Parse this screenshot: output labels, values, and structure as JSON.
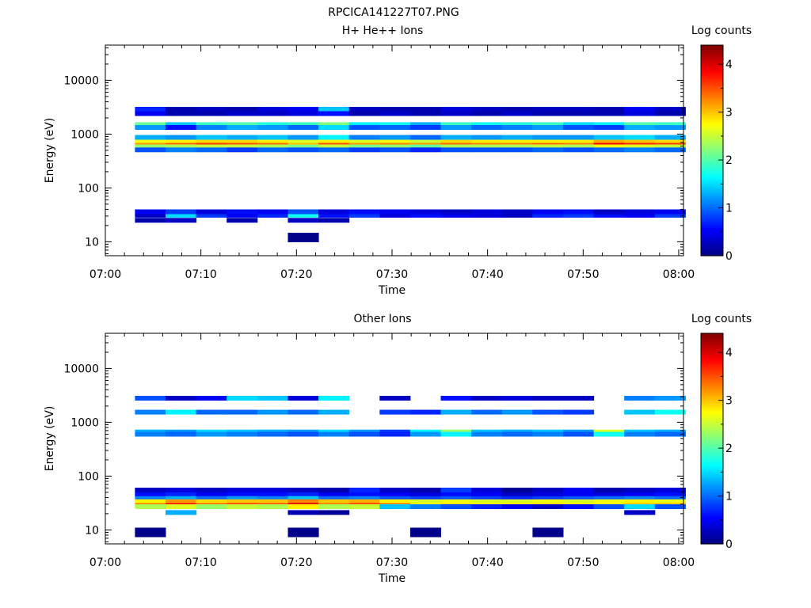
{
  "figure_title": "RPCICA141227T07.PNG",
  "chart_data": [
    {
      "type": "heatmap",
      "title": "H+ He++ Ions",
      "xlabel": "Time",
      "ylabel": "Energy (eV)",
      "colorbar_label": "Log counts",
      "x_ticks": [
        "07:00",
        "07:10",
        "07:20",
        "07:30",
        "07:40",
        "07:50",
        "08:00"
      ],
      "xlim_minutes": [
        0,
        60.5
      ],
      "y_scale": "log",
      "ylim": [
        5.5,
        45000
      ],
      "y_ticks": [
        10,
        100,
        1000,
        10000
      ],
      "y_tick_labels": [
        "10",
        "100",
        "1000",
        "10000"
      ],
      "colorbar_ticks": [
        "0",
        "1",
        "2",
        "3",
        "4"
      ],
      "colorbar_range": [
        0,
        4.4
      ],
      "time_bins_start_min": [
        3.1,
        6.3,
        9.5,
        12.7,
        15.9,
        19.1,
        22.3,
        25.5,
        28.7,
        31.9,
        35.1,
        38.3,
        41.5,
        44.7,
        47.9,
        51.1,
        54.3,
        57.5
      ],
      "bin_width_min": 3.2,
      "bands": [
        {
          "energy": 660,
          "levels": [
            3.2,
            3.4,
            3.6,
            3.5,
            3.4,
            3.0,
            3.5,
            3.2,
            3.3,
            3.2,
            3.4,
            3.3,
            3.3,
            3.4,
            3.3,
            3.9,
            3.7,
            3.6
          ]
        },
        {
          "energy": 760,
          "levels": [
            2.7,
            2.8,
            2.9,
            2.9,
            2.8,
            2.6,
            2.8,
            2.6,
            2.7,
            2.5,
            2.9,
            2.8,
            2.8,
            2.8,
            2.8,
            3.1,
            3.0,
            2.9
          ]
        },
        {
          "energy": 580,
          "levels": [
            2.3,
            2.4,
            2.5,
            2.5,
            2.4,
            2.2,
            2.5,
            2.2,
            2.3,
            2.1,
            2.4,
            2.4,
            2.4,
            2.5,
            2.4,
            2.7,
            2.6,
            2.5
          ]
        },
        {
          "energy": 870,
          "levels": [
            1.3,
            1.2,
            1.4,
            1.3,
            1.4,
            1.2,
            1.6,
            1.1,
            1.2,
            1.0,
            1.3,
            1.2,
            1.3,
            1.2,
            1.2,
            1.4,
            1.5,
            1.3
          ]
        },
        {
          "energy": 510,
          "levels": [
            0.9,
            1.1,
            1.0,
            0.8,
            1.0,
            0.9,
            1.0,
            0.8,
            0.9,
            0.7,
            0.9,
            0.9,
            0.9,
            1.0,
            0.9,
            1.0,
            1.1,
            1.0
          ]
        },
        {
          "energy": 1500,
          "levels": [
            2.1,
            1.4,
            1.9,
            2.0,
            1.8,
            1.9,
            2.2,
            1.6,
            1.7,
            1.3,
            1.9,
            1.7,
            1.8,
            1.9,
            1.5,
            1.6,
            2.0,
            1.9
          ]
        },
        {
          "energy": 1330,
          "levels": [
            1.2,
            0.6,
            1.1,
            1.3,
            1.2,
            1.0,
            1.5,
            0.9,
            1.0,
            0.8,
            1.2,
            1.0,
            1.1,
            1.2,
            0.9,
            0.8,
            1.3,
            1.2
          ]
        },
        {
          "energy": 31,
          "levels": [
            0.3,
            1.5,
            0.8,
            0.5,
            0.7,
            1.7,
            0.6,
            0.8,
            0.4,
            0.6,
            0.5,
            0.4,
            0.3,
            0.7,
            0.8,
            0.6,
            0.5,
            0.8
          ]
        },
        {
          "energy": 36,
          "levels": [
            0.5,
            0.8,
            0.4,
            0.6,
            0.5,
            0.9,
            0.4,
            0.6,
            0.5,
            0.4,
            0.3,
            0.4,
            0.3,
            0.5,
            0.6,
            0.3,
            0.4,
            0.5
          ]
        },
        {
          "energy": 25,
          "levels": [
            0.2,
            0.3,
            0.0,
            0.2,
            0.0,
            0.3,
            0.2,
            0.0,
            0.0,
            0.0,
            0.0,
            0.0,
            0.0,
            0.0,
            0.0,
            0.0,
            0.0,
            0.0
          ]
        },
        {
          "energy": 2900,
          "levels": [
            0.7,
            0.2,
            0.3,
            0.2,
            0.4,
            0.5,
            1.4,
            0.3,
            0.2,
            0.2,
            0.4,
            0.3,
            0.2,
            0.3,
            0.3,
            0.2,
            0.5,
            0.3
          ]
        },
        {
          "energy": 2400,
          "levels": [
            0.5,
            0.2,
            0.2,
            0.3,
            0.3,
            0.4,
            0.6,
            0.2,
            0.3,
            0.2,
            0.3,
            0.2,
            0.3,
            0.2,
            0.2,
            0.2,
            0.4,
            0.2
          ]
        },
        {
          "energy": 12,
          "levels": [
            0,
            0,
            0,
            0,
            0,
            0.05,
            0,
            0,
            0,
            0,
            0,
            0,
            0,
            0,
            0,
            0,
            0,
            0
          ]
        }
      ]
    },
    {
      "type": "heatmap",
      "title": "Other Ions",
      "xlabel": "Time",
      "ylabel": "Energy (eV)",
      "colorbar_label": "Log counts",
      "x_ticks": [
        "07:00",
        "07:10",
        "07:20",
        "07:30",
        "07:40",
        "07:50",
        "08:00"
      ],
      "xlim_minutes": [
        0,
        60.5
      ],
      "y_scale": "log",
      "ylim": [
        5.5,
        45000
      ],
      "y_ticks": [
        10,
        100,
        1000,
        10000
      ],
      "y_tick_labels": [
        "10",
        "100",
        "1000",
        "10000"
      ],
      "colorbar_ticks": [
        "0",
        "1",
        "2",
        "3",
        "4"
      ],
      "colorbar_range": [
        0,
        4.4
      ],
      "time_bins_start_min": [
        3.1,
        6.3,
        9.5,
        12.7,
        15.9,
        19.1,
        22.3,
        25.5,
        28.7,
        31.9,
        35.1,
        38.3,
        41.5,
        44.7,
        47.9,
        51.1,
        54.3,
        57.5
      ],
      "bin_width_min": 3.2,
      "bands": [
        {
          "energy": 31,
          "levels": [
            3.3,
            3.8,
            3.4,
            3.6,
            3.5,
            4.0,
            3.3,
            3.6,
            3.3,
            2.8,
            2.9,
            2.8,
            2.8,
            2.9,
            2.8,
            2.8,
            3.0,
            3.0
          ]
        },
        {
          "energy": 35,
          "levels": [
            2.8,
            3.2,
            2.9,
            3.0,
            3.0,
            3.3,
            3.0,
            3.1,
            2.8,
            2.6,
            2.7,
            2.6,
            2.6,
            2.7,
            2.6,
            2.7,
            2.8,
            2.7
          ]
        },
        {
          "energy": 27,
          "levels": [
            2.4,
            2.6,
            2.3,
            2.5,
            2.4,
            2.8,
            2.4,
            2.5,
            1.4,
            1.1,
            0.9,
            0.7,
            0.5,
            0.3,
            0.6,
            0.9,
            1.5,
            0.9
          ]
        },
        {
          "energy": 41,
          "levels": [
            1.1,
            1.3,
            1.0,
            1.2,
            1.1,
            1.4,
            1.0,
            1.1,
            0.9,
            0.8,
            0.9,
            0.8,
            0.7,
            0.8,
            0.9,
            1.0,
            1.1,
            1.0
          ]
        },
        {
          "energy": 47,
          "levels": [
            0.6,
            0.7,
            0.5,
            0.6,
            0.6,
            0.7,
            0.5,
            0.6,
            0.5,
            0.4,
            0.6,
            0.5,
            0.3,
            0.4,
            0.5,
            0.4,
            0.5,
            0.6
          ]
        },
        {
          "energy": 55,
          "levels": [
            0.3,
            0.4,
            0.3,
            0.4,
            0.4,
            0.3,
            0.2,
            0.7,
            0.3,
            0.2,
            0.8,
            0.4,
            0.1,
            0.3,
            0.5,
            0.2,
            0.3,
            0.4
          ]
        },
        {
          "energy": 21,
          "levels": [
            0,
            1.3,
            0,
            0,
            0,
            0.2,
            0.1,
            0,
            0,
            0,
            0,
            0,
            0,
            0,
            0,
            0,
            0.3,
            0
          ]
        },
        {
          "energy": 660,
          "levels": [
            1.3,
            1.2,
            1.5,
            1.4,
            1.3,
            1.2,
            1.5,
            1.2,
            0.8,
            1.6,
            2.3,
            1.4,
            1.3,
            1.4,
            1.2,
            2.6,
            1.4,
            1.3
          ]
        },
        {
          "energy": 600,
          "levels": [
            1.1,
            1.0,
            1.2,
            1.1,
            1.0,
            0.9,
            1.1,
            0.9,
            0.7,
            1.2,
            1.6,
            1.1,
            1.0,
            1.1,
            0.9,
            1.7,
            1.1,
            1.0
          ]
        },
        {
          "energy": 1540,
          "levels": [
            1.1,
            1.6,
            1.0,
            1.0,
            1.2,
            1.0,
            1.3,
            0,
            0.8,
            0.7,
            1.3,
            1.0,
            1.2,
            0.9,
            0.8,
            0,
            1.4,
            1.7
          ]
        },
        {
          "energy": 2800,
          "levels": [
            0.9,
            0.3,
            0.5,
            1.5,
            1.4,
            0.4,
            1.6,
            0,
            0.3,
            0,
            0.6,
            0.3,
            0.4,
            0.3,
            0.3,
            0,
            1.1,
            1.2
          ]
        },
        {
          "energy": 9,
          "levels": [
            0.05,
            0,
            0,
            0,
            0,
            0.05,
            0,
            0,
            0,
            0.05,
            0,
            0,
            0,
            0.05,
            0,
            0,
            0,
            0
          ]
        }
      ]
    }
  ]
}
